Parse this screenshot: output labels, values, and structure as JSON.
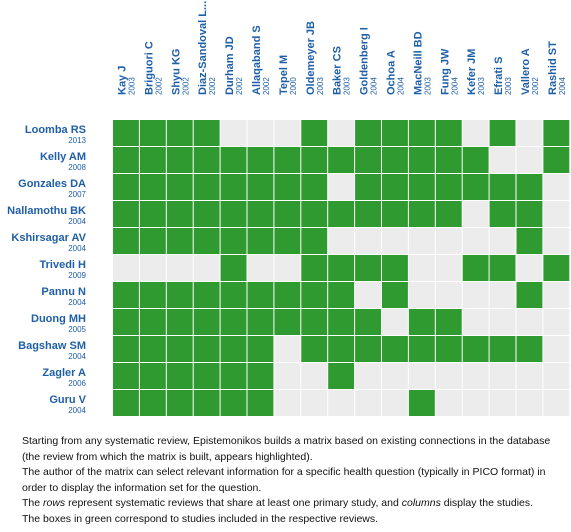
{
  "matrix": {
    "columns": [
      {
        "name": "Kay J",
        "year": "2003"
      },
      {
        "name": "Briguori C",
        "year": "2002"
      },
      {
        "name": "Shyu KG",
        "year": "2002"
      },
      {
        "name": "Diaz-Sandoval L...",
        "year": "2002"
      },
      {
        "name": "Durham JD",
        "year": "2002"
      },
      {
        "name": "Allaqaband S",
        "year": "2002"
      },
      {
        "name": "Tepel M",
        "year": "2000"
      },
      {
        "name": "Oldemeyer JB",
        "year": "2003"
      },
      {
        "name": "Baker CS",
        "year": "2003"
      },
      {
        "name": "Goldenberg I",
        "year": "2004"
      },
      {
        "name": "Ochoa A",
        "year": "2004"
      },
      {
        "name": "MacNeill BD",
        "year": "2003"
      },
      {
        "name": "Fung JW",
        "year": "2004"
      },
      {
        "name": "Kefer JM",
        "year": "2003"
      },
      {
        "name": "Efrati S",
        "year": "2003"
      },
      {
        "name": "Vallero A",
        "year": "2002"
      },
      {
        "name": "Rashid ST",
        "year": "2004"
      }
    ],
    "rows": [
      {
        "name": "Loomba RS",
        "year": "2013",
        "cells": [
          1,
          1,
          1,
          1,
          0,
          0,
          0,
          1,
          0,
          1,
          1,
          1,
          1,
          0,
          1,
          0,
          1
        ]
      },
      {
        "name": "Kelly AM",
        "year": "2008",
        "cells": [
          1,
          1,
          1,
          1,
          1,
          1,
          1,
          1,
          1,
          1,
          1,
          1,
          1,
          1,
          0,
          0,
          1
        ]
      },
      {
        "name": "Gonzales DA",
        "year": "2007",
        "cells": [
          1,
          1,
          1,
          1,
          1,
          1,
          1,
          1,
          0,
          1,
          1,
          1,
          1,
          1,
          1,
          1,
          0
        ]
      },
      {
        "name": "Nallamothu BK",
        "year": "2004",
        "cells": [
          1,
          1,
          1,
          1,
          1,
          1,
          1,
          1,
          1,
          1,
          1,
          1,
          1,
          0,
          1,
          1,
          0
        ]
      },
      {
        "name": "Kshirsagar AV",
        "year": "2004",
        "cells": [
          1,
          1,
          1,
          1,
          1,
          1,
          1,
          1,
          0,
          0,
          0,
          0,
          0,
          0,
          0,
          1,
          0
        ]
      },
      {
        "name": "Trivedi H",
        "year": "2009",
        "cells": [
          0,
          0,
          0,
          0,
          1,
          0,
          0,
          1,
          1,
          1,
          1,
          0,
          0,
          1,
          1,
          0,
          1
        ]
      },
      {
        "name": "Pannu N",
        "year": "2004",
        "cells": [
          1,
          1,
          1,
          1,
          1,
          1,
          1,
          1,
          1,
          0,
          1,
          0,
          0,
          0,
          0,
          1,
          0
        ]
      },
      {
        "name": "Duong MH",
        "year": "2005",
        "cells": [
          1,
          1,
          1,
          1,
          1,
          1,
          1,
          1,
          1,
          1,
          0,
          1,
          1,
          0,
          0,
          0,
          0
        ]
      },
      {
        "name": "Bagshaw SM",
        "year": "2004",
        "cells": [
          1,
          1,
          1,
          1,
          1,
          1,
          0,
          1,
          1,
          1,
          1,
          1,
          1,
          1,
          1,
          1,
          0
        ]
      },
      {
        "name": "Zagler A",
        "year": "2006",
        "cells": [
          1,
          1,
          1,
          1,
          1,
          1,
          0,
          0,
          1,
          0,
          0,
          0,
          0,
          0,
          0,
          0,
          0
        ]
      },
      {
        "name": "Guru V",
        "year": "2004",
        "cells": [
          1,
          1,
          1,
          1,
          1,
          1,
          0,
          0,
          0,
          0,
          0,
          1,
          0,
          0,
          0,
          0,
          0
        ]
      }
    ],
    "included_color": "#2f9a2f",
    "excluded_color": "#ececec"
  },
  "description": {
    "p1": "Starting from any systematic review, Epistemonikos builds a matrix based on existing connections in the database (the review from which the matrix is built, appears highlighted).",
    "p2": "The author of the matrix can select relevant information for a specific health question (typically in PICO format) in order to display the information set for the question.",
    "p3": [
      "The ",
      "rows",
      " represent systematic reviews that share at least one primary study, and ",
      "columns",
      " display the studies."
    ],
    "p4": "The boxes in green correspond to studies included in the respective reviews."
  }
}
